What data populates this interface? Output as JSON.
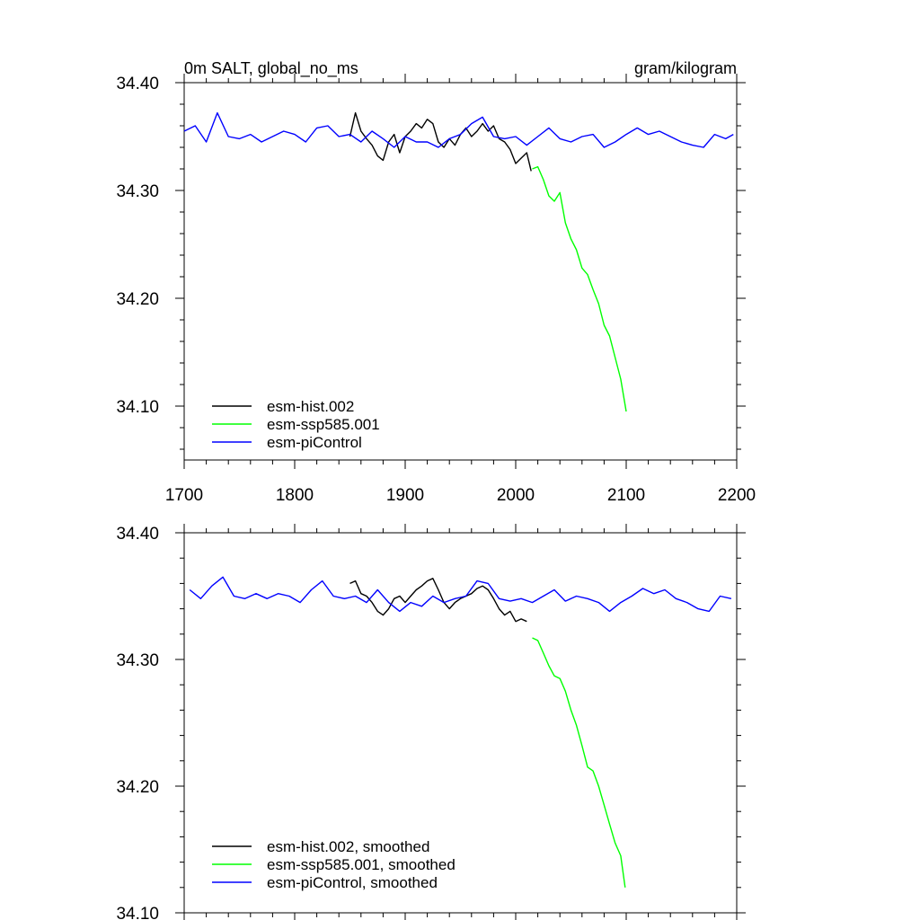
{
  "chart_data": [
    {
      "type": "line",
      "title_left": "0m SALT, global_no_ms",
      "title_right": "gram/kilogram",
      "xlim": [
        1700,
        2200
      ],
      "ylim": [
        34.05,
        34.4
      ],
      "xticks": [
        "1700",
        "1800",
        "1900",
        "2000",
        "2100",
        "2200"
      ],
      "yticks": [
        "34.10",
        "34.20",
        "34.30",
        "34.40"
      ],
      "legend_position": "bottom-left",
      "series": [
        {
          "name": "esm-hist.002",
          "color": "#000000",
          "x": [
            1850,
            1855,
            1860,
            1865,
            1870,
            1875,
            1880,
            1885,
            1890,
            1895,
            1900,
            1905,
            1910,
            1915,
            1920,
            1925,
            1930,
            1935,
            1940,
            1945,
            1950,
            1955,
            1960,
            1965,
            1970,
            1975,
            1980,
            1985,
            1990,
            1995,
            2000,
            2005,
            2010,
            2014
          ],
          "y": [
            34.35,
            34.372,
            34.355,
            34.348,
            34.342,
            34.332,
            34.328,
            34.345,
            34.352,
            34.335,
            34.35,
            34.355,
            34.362,
            34.358,
            34.366,
            34.362,
            34.345,
            34.34,
            34.348,
            34.342,
            34.352,
            34.358,
            34.35,
            34.355,
            34.362,
            34.355,
            34.36,
            34.348,
            34.345,
            34.338,
            34.325,
            34.33,
            34.335,
            34.318
          ]
        },
        {
          "name": "esm-ssp585.001",
          "color": "#00ff00",
          "x": [
            2015,
            2020,
            2025,
            2030,
            2035,
            2040,
            2045,
            2050,
            2055,
            2060,
            2065,
            2070,
            2075,
            2080,
            2085,
            2090,
            2095,
            2100
          ],
          "y": [
            34.32,
            34.322,
            34.31,
            34.295,
            34.29,
            34.298,
            34.27,
            34.255,
            34.245,
            34.228,
            34.222,
            34.208,
            34.195,
            34.175,
            34.165,
            34.145,
            34.125,
            34.095
          ]
        },
        {
          "name": "esm-piControl",
          "color": "#0000ff",
          "x": [
            1700,
            1710,
            1720,
            1730,
            1740,
            1750,
            1760,
            1770,
            1780,
            1790,
            1800,
            1810,
            1820,
            1830,
            1840,
            1850,
            1860,
            1870,
            1880,
            1890,
            1900,
            1910,
            1920,
            1930,
            1940,
            1950,
            1960,
            1970,
            1980,
            1990,
            2000,
            2010,
            2020,
            2030,
            2040,
            2050,
            2060,
            2070,
            2080,
            2090,
            2100,
            2110,
            2120,
            2130,
            2140,
            2150,
            2160,
            2170,
            2180,
            2190,
            2197
          ],
          "y": [
            34.355,
            34.36,
            34.345,
            34.372,
            34.35,
            34.348,
            34.352,
            34.345,
            34.35,
            34.355,
            34.352,
            34.345,
            34.358,
            34.36,
            34.35,
            34.352,
            34.345,
            34.355,
            34.348,
            34.34,
            34.35,
            34.345,
            34.345,
            34.34,
            34.348,
            34.352,
            34.362,
            34.368,
            34.35,
            34.348,
            34.35,
            34.342,
            34.35,
            34.358,
            34.348,
            34.345,
            34.35,
            34.352,
            34.34,
            34.345,
            34.352,
            34.358,
            34.352,
            34.355,
            34.35,
            34.345,
            34.342,
            34.34,
            34.352,
            34.348,
            34.352
          ]
        }
      ]
    },
    {
      "type": "line",
      "xlim": [
        1700,
        2200
      ],
      "ylim": [
        34.1,
        34.4
      ],
      "yticks": [
        "34.10",
        "34.20",
        "34.30",
        "34.40"
      ],
      "legend_position": "bottom-left",
      "series": [
        {
          "name": "esm-hist.002, smoothed",
          "color": "#000000",
          "x": [
            1850,
            1855,
            1860,
            1865,
            1870,
            1875,
            1880,
            1885,
            1890,
            1895,
            1900,
            1905,
            1910,
            1915,
            1920,
            1925,
            1930,
            1935,
            1940,
            1945,
            1950,
            1955,
            1960,
            1965,
            1970,
            1975,
            1980,
            1985,
            1990,
            1995,
            2000,
            2005,
            2010
          ],
          "y": [
            34.36,
            34.362,
            34.352,
            34.35,
            34.345,
            34.338,
            34.335,
            34.34,
            34.348,
            34.35,
            34.345,
            34.35,
            34.355,
            34.358,
            34.362,
            34.364,
            34.355,
            34.345,
            34.34,
            34.345,
            34.348,
            34.35,
            34.352,
            34.356,
            34.358,
            34.355,
            34.348,
            34.34,
            34.335,
            34.338,
            34.33,
            34.332,
            34.33
          ]
        },
        {
          "name": "esm-ssp585.001, smoothed",
          "color": "#00ff00",
          "x": [
            2015,
            2020,
            2025,
            2030,
            2035,
            2040,
            2045,
            2050,
            2055,
            2060,
            2065,
            2070,
            2075,
            2080,
            2085,
            2090,
            2095,
            2099
          ],
          "y": [
            34.317,
            34.315,
            34.305,
            34.295,
            34.287,
            34.285,
            34.275,
            34.26,
            34.248,
            34.232,
            34.215,
            34.212,
            34.2,
            34.185,
            34.17,
            34.155,
            34.145,
            34.12
          ]
        },
        {
          "name": "esm-piControl, smoothed",
          "color": "#0000ff",
          "x": [
            1705,
            1715,
            1725,
            1735,
            1745,
            1755,
            1765,
            1775,
            1785,
            1795,
            1805,
            1815,
            1825,
            1835,
            1845,
            1855,
            1865,
            1875,
            1885,
            1895,
            1905,
            1915,
            1925,
            1935,
            1945,
            1955,
            1965,
            1975,
            1985,
            1995,
            2005,
            2015,
            2025,
            2035,
            2045,
            2055,
            2065,
            2075,
            2085,
            2095,
            2105,
            2115,
            2125,
            2135,
            2145,
            2155,
            2165,
            2175,
            2185,
            2195
          ],
          "y": [
            34.355,
            34.348,
            34.358,
            34.365,
            34.35,
            34.348,
            34.352,
            34.348,
            34.352,
            34.35,
            34.345,
            34.355,
            34.362,
            34.35,
            34.348,
            34.35,
            34.345,
            34.355,
            34.345,
            34.338,
            34.345,
            34.342,
            34.35,
            34.345,
            34.348,
            34.35,
            34.362,
            34.36,
            34.348,
            34.346,
            34.348,
            34.345,
            34.35,
            34.355,
            34.346,
            34.35,
            34.348,
            34.345,
            34.338,
            34.345,
            34.35,
            34.356,
            34.352,
            34.355,
            34.348,
            34.345,
            34.34,
            34.338,
            34.35,
            34.348
          ]
        }
      ]
    }
  ]
}
